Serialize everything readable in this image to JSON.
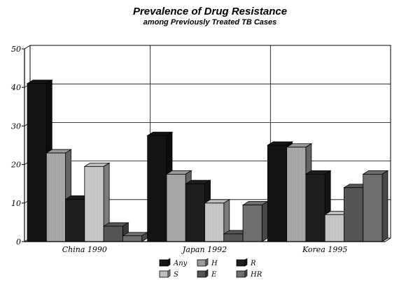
{
  "chart_data": {
    "type": "bar",
    "title": "Prevalence of Drug Resistance",
    "subtitle": "among Previously Treated TB Cases",
    "categories": [
      "China 1990",
      "Japan 1992",
      "Korea 1995"
    ],
    "ylim": [
      0,
      50
    ],
    "yticks": [
      "0",
      "10",
      "20",
      "30",
      "40",
      "50"
    ],
    "grid": true,
    "legend_position": "bottom",
    "series": [
      {
        "name": "Any",
        "values": [
          41,
          27.5,
          25
        ],
        "color": "#141414"
      },
      {
        "name": "H",
        "values": [
          23,
          17.5,
          24.5
        ],
        "color": "#9a9a9a"
      },
      {
        "name": "R",
        "values": [
          11,
          15,
          17.5
        ],
        "color": "#1e1e1e"
      },
      {
        "name": "S",
        "values": [
          19.5,
          10,
          7
        ],
        "color": "#bdbdbd"
      },
      {
        "name": "E",
        "values": [
          4,
          2,
          14
        ],
        "color": "#555555"
      },
      {
        "name": "HR",
        "values": [
          1.5,
          9.5,
          17.5
        ],
        "color": "#6e6e6e"
      }
    ]
  }
}
